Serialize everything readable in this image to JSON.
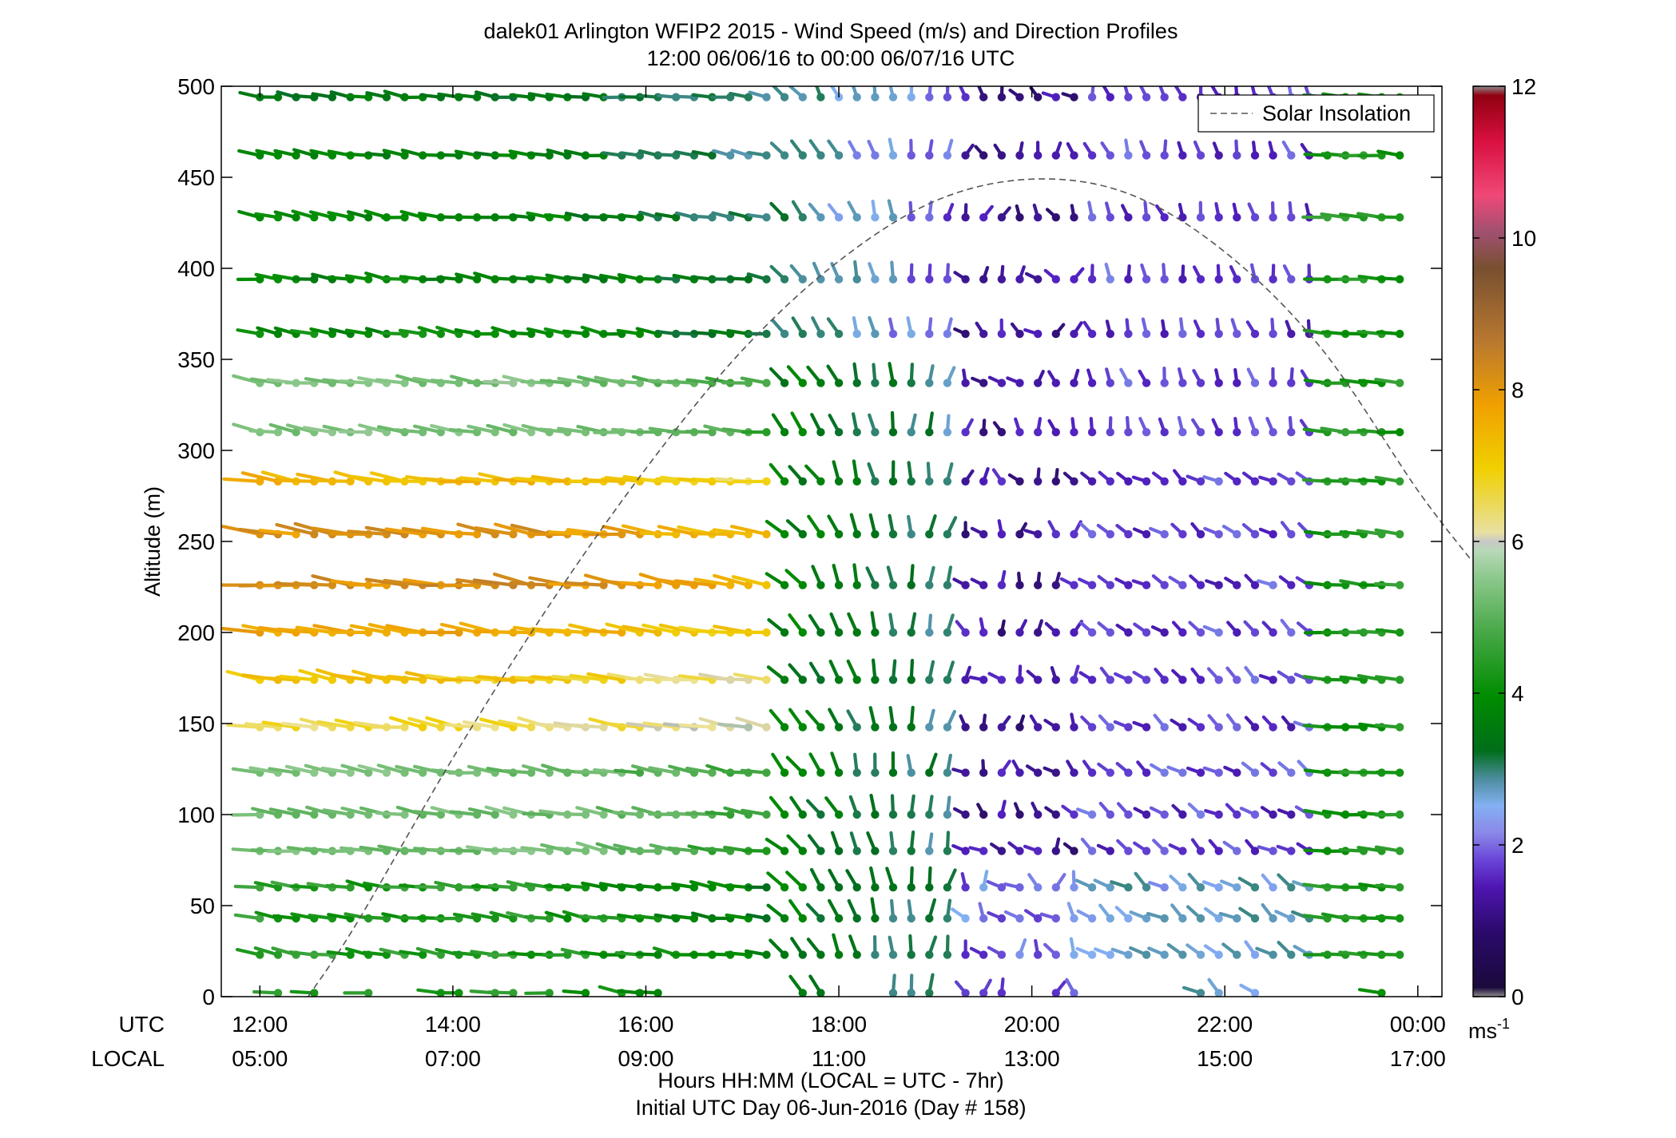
{
  "chart_data": {
    "type": "wind_barb_profile",
    "title": "dalek01 Arlington WFIP2 2015 - Wind Speed (m/s) and Direction Profiles",
    "subtitle": "12:00 06/06/16 to 00:00 06/07/16  UTC",
    "ylabel": "Altitude (m)",
    "xlabel": "Hours HH:MM  (LOCAL = UTC - 7hr)",
    "xlabel2": "Initial UTC Day 06-Jun-2016 (Day # 158)",
    "utc_row_label": "UTC",
    "local_row_label": "LOCAL",
    "ylim": [
      0,
      500
    ],
    "xlim_hours": [
      11.6,
      24.25
    ],
    "y_ticks": [
      0,
      50,
      100,
      150,
      200,
      250,
      300,
      350,
      400,
      450,
      500
    ],
    "y_tick_labels": [
      "0",
      "50",
      "100",
      "150",
      "200",
      "250",
      "300",
      "350",
      "400",
      "450",
      "500"
    ],
    "x_ticks_hours": [
      12,
      14,
      16,
      18,
      20,
      22,
      24
    ],
    "x_ticks_utc": [
      "12:00",
      "14:00",
      "16:00",
      "18:00",
      "20:00",
      "22:00",
      "00:00"
    ],
    "x_ticks_local": [
      "05:00",
      "07:00",
      "09:00",
      "11:00",
      "13:00",
      "15:00",
      "17:00"
    ],
    "altitudes": [
      2,
      23,
      43,
      60,
      80,
      100,
      123,
      148,
      174,
      200,
      226,
      254,
      283,
      310,
      337,
      364,
      394,
      428,
      462,
      494
    ],
    "profile_interval_hours": 0.1875,
    "legend": {
      "label": "Solar Insolation",
      "position": "top-right"
    },
    "colorbar": {
      "min": 0,
      "max": 12,
      "ticks": [
        0,
        2,
        4,
        6,
        8,
        10,
        12
      ],
      "tick_labels": [
        "0",
        "2",
        "4",
        "6",
        "8",
        "10",
        "12"
      ],
      "unit_label": "ms",
      "unit_superscript": "-1"
    },
    "solar_insolation": {
      "style": "dashed",
      "color": "#555555",
      "hours": [
        12.5,
        13,
        14,
        15,
        16,
        17,
        18,
        19,
        20,
        21,
        22,
        23,
        24,
        24.55
      ],
      "altitudes": [
        0,
        40,
        131,
        215,
        290,
        355,
        404,
        437,
        449,
        441,
        409,
        356,
        278,
        240
      ]
    },
    "grid": false
  }
}
